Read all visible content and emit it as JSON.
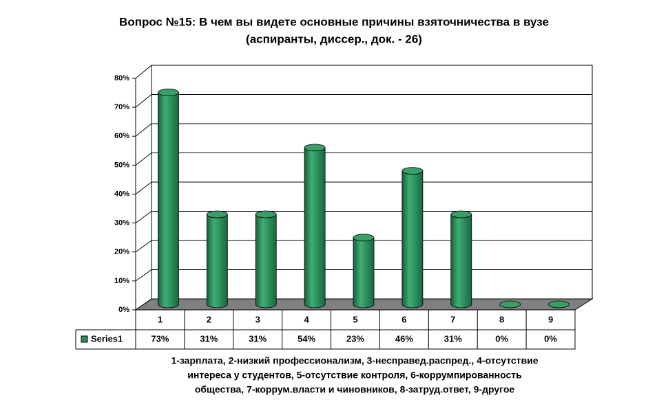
{
  "chart_data": {
    "type": "bar",
    "title": [
      "Вопрос №15:  В чем вы видете основные причины взяточничества в вузе",
      "(аспиранты, диссер., док. - 26)"
    ],
    "categories": [
      "1",
      "2",
      "3",
      "4",
      "5",
      "6",
      "7",
      "8",
      "9"
    ],
    "series": [
      {
        "name": "Series1",
        "color": "#2e8b57",
        "values": [
          73,
          31,
          31,
          54,
          23,
          46,
          31,
          0,
          0
        ],
        "value_labels": [
          "73%",
          "31%",
          "31%",
          "54%",
          "23%",
          "46%",
          "31%",
          "0%",
          "0%"
        ]
      }
    ],
    "ylim": [
      0,
      80
    ],
    "yticks": [
      {
        "value": 0,
        "label": "0%"
      },
      {
        "value": 10,
        "label": "10%"
      },
      {
        "value": 20,
        "label": "20%"
      },
      {
        "value": 30,
        "label": "30%"
      },
      {
        "value": 40,
        "label": "40%"
      },
      {
        "value": 50,
        "label": "50%"
      },
      {
        "value": 60,
        "label": "60%"
      },
      {
        "value": 70,
        "label": "70%"
      },
      {
        "value": 80,
        "label": "80%"
      }
    ],
    "grid": true,
    "annotations": [
      "1-зарплата, 2-низкий профессионализм, 3-несправед.распред., 4-отсутствие",
      "интереса у студентов, 5-отсутствие контроля, 6-коррумпированность",
      "общества, 7-коррум.власти и чиновников, 8-затруд.ответ, 9-другое"
    ]
  }
}
